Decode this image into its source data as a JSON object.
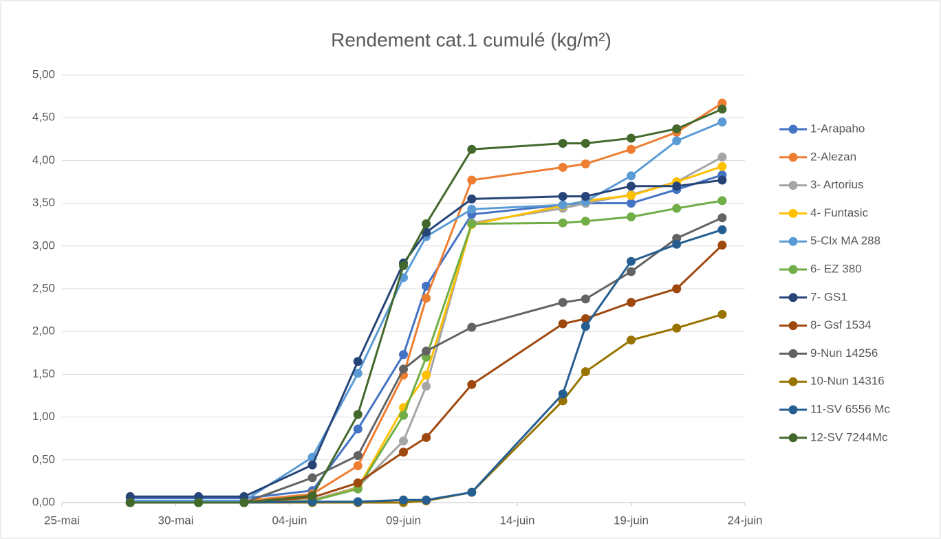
{
  "chart_data": {
    "type": "line",
    "title": "Rendement cat.1 cumulé (kg/m²)",
    "x": [
      "28-mai",
      "31-mai",
      "02-juin",
      "05-juin",
      "07-juin",
      "09-juin",
      "10-juin",
      "12-juin",
      "16-juin",
      "17-juin",
      "19-juin",
      "21-juin",
      "23-juin"
    ],
    "xlim": [
      "25-mai",
      "24-juin"
    ],
    "xticks": [
      "25-mai",
      "30-mai",
      "04-juin",
      "09-juin",
      "14-juin",
      "19-juin",
      "24-juin"
    ],
    "ylim": [
      0,
      5
    ],
    "yticks": [
      {
        "value": 0,
        "label": "0,00"
      },
      {
        "value": 0.5,
        "label": "0,50"
      },
      {
        "value": 1,
        "label": "1,00"
      },
      {
        "value": 1.5,
        "label": "1,50"
      },
      {
        "value": 2,
        "label": "2,00"
      },
      {
        "value": 2.5,
        "label": "2,50"
      },
      {
        "value": 3,
        "label": "3,00"
      },
      {
        "value": 3.5,
        "label": "3,50"
      },
      {
        "value": 4,
        "label": "4,00"
      },
      {
        "value": 4.5,
        "label": "4,50"
      },
      {
        "value": 5,
        "label": "5,00"
      }
    ],
    "grid": true,
    "legend": "right",
    "series": [
      {
        "name": "1-Arapaho",
        "color": "#4472c4",
        "values": [
          0.05,
          0.05,
          0.05,
          0.14,
          0.86,
          1.73,
          2.53,
          3.37,
          3.48,
          3.5,
          3.5,
          3.66,
          3.83
        ]
      },
      {
        "name": "2-Alezan",
        "color": "#ed7d31",
        "values": [
          0.02,
          0.02,
          0.02,
          0.1,
          0.43,
          1.49,
          2.39,
          3.77,
          3.92,
          3.96,
          4.13,
          4.33,
          4.67
        ]
      },
      {
        "name": "3- Artorius",
        "color": "#a5a5a5",
        "values": [
          0,
          0,
          0,
          0.03,
          0.18,
          0.72,
          1.36,
          3.27,
          3.44,
          3.5,
          3.6,
          3.75,
          4.04
        ]
      },
      {
        "name": "4- Funtasic",
        "color": "#ffc000",
        "values": [
          0,
          0,
          0,
          0.02,
          0.17,
          1.11,
          1.49,
          3.25,
          3.47,
          3.53,
          3.59,
          3.75,
          3.93
        ]
      },
      {
        "name": "5-Clx MA 288",
        "color": "#5b9bd5",
        "values": [
          0.02,
          0.02,
          0.02,
          0.53,
          1.51,
          2.63,
          3.11,
          3.43,
          3.48,
          3.52,
          3.82,
          4.23,
          4.45
        ]
      },
      {
        "name": "6- EZ 380",
        "color": "#70ad47",
        "values": [
          0,
          0,
          0,
          0.02,
          0.16,
          1.02,
          1.7,
          3.26,
          3.27,
          3.29,
          3.34,
          3.44,
          3.53
        ]
      },
      {
        "name": "7- GS1",
        "color": "#264478",
        "values": [
          0.07,
          0.07,
          0.07,
          0.44,
          1.65,
          2.8,
          3.16,
          3.55,
          3.58,
          3.58,
          3.7,
          3.7,
          3.77
        ]
      },
      {
        "name": "8- Gsf 1534",
        "color": "#9e480e",
        "values": [
          0,
          0,
          0,
          0.06,
          0.23,
          0.59,
          0.76,
          1.38,
          2.09,
          2.15,
          2.34,
          2.5,
          3.01
        ]
      },
      {
        "name": "9-Nun 14256",
        "color": "#636363",
        "values": [
          0,
          0,
          0,
          0.29,
          0.55,
          1.56,
          1.77,
          2.05,
          2.34,
          2.38,
          2.7,
          3.09,
          3.33
        ]
      },
      {
        "name": "10-Nun 14316",
        "color": "#997300",
        "values": [
          0,
          0,
          0,
          0,
          0,
          0,
          0.02,
          0.12,
          1.19,
          1.53,
          1.9,
          2.04,
          2.2
        ]
      },
      {
        "name": "11-SV 6556 Mc",
        "color": "#255e91",
        "values": [
          0,
          0,
          0,
          0.01,
          0.01,
          0.03,
          0.03,
          0.12,
          1.27,
          2.06,
          2.82,
          3.02,
          3.19
        ]
      },
      {
        "name": "12-SV 7244Mc",
        "color": "#43682b",
        "values": [
          0,
          0,
          0,
          0.08,
          1.03,
          2.77,
          3.26,
          4.13,
          4.2,
          4.2,
          4.26,
          4.37,
          4.6
        ]
      }
    ]
  }
}
